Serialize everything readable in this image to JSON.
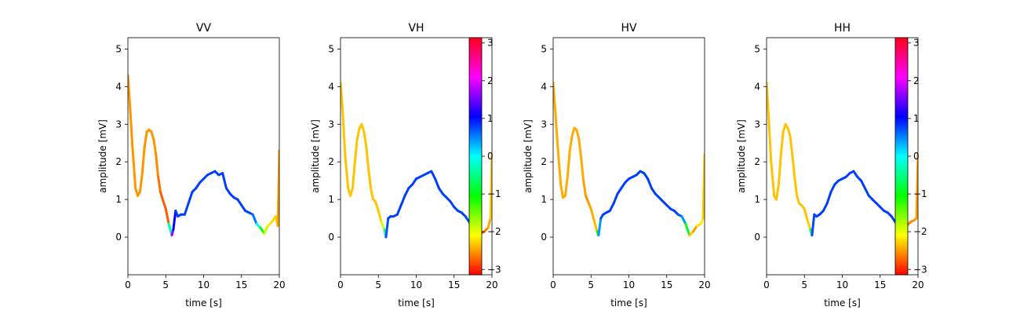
{
  "chart_data": {
    "type": "line",
    "colorbar": {
      "ticks": [
        3,
        2,
        1,
        0,
        -1,
        -2,
        -3
      ],
      "range": [
        -3.14,
        3.14
      ],
      "colormap": "hsv"
    },
    "panels": [
      {
        "title": "VV",
        "xlabel": "time [s]",
        "ylabel": "amplitude [mV]",
        "xlim": [
          0,
          20
        ],
        "ylim": [
          -1,
          5.3
        ],
        "xticks": [
          0,
          5,
          10,
          15,
          20
        ],
        "yticks": [
          0,
          1,
          2,
          3,
          4,
          5
        ],
        "has_colorbar": false,
        "series": {
          "x": [
            0,
            0.3,
            0.6,
            1.0,
            1.3,
            1.6,
            1.9,
            2.2,
            2.5,
            2.8,
            3.1,
            3.4,
            3.7,
            4.0,
            4.3,
            4.6,
            5.0,
            5.4,
            5.8,
            6.0,
            6.3,
            6.6,
            7.0,
            7.5,
            8.0,
            8.5,
            9.0,
            9.5,
            10.0,
            10.5,
            11.0,
            11.5,
            12.0,
            12.5,
            13.0,
            13.5,
            14.0,
            14.5,
            15.0,
            15.5,
            16.0,
            16.5,
            17.0,
            17.5,
            18.0,
            18.5,
            19.0,
            19.5,
            19.8,
            20.0
          ],
          "y": [
            4.3,
            3.4,
            2.4,
            1.3,
            1.1,
            1.2,
            1.7,
            2.4,
            2.8,
            2.85,
            2.8,
            2.6,
            2.2,
            1.6,
            1.2,
            1.0,
            0.75,
            0.35,
            0.05,
            0.2,
            0.7,
            0.55,
            0.6,
            0.6,
            0.9,
            1.2,
            1.3,
            1.45,
            1.55,
            1.65,
            1.7,
            1.75,
            1.65,
            1.7,
            1.3,
            1.15,
            1.05,
            1.0,
            0.85,
            0.7,
            0.65,
            0.6,
            0.35,
            0.25,
            0.1,
            0.3,
            0.4,
            0.55,
            0.3,
            2.3
          ],
          "phase": [
            -2.5,
            -2.5,
            -2.5,
            -2.5,
            -2.5,
            -2.5,
            -2.5,
            -2.5,
            -2.5,
            -2.5,
            -2.5,
            -2.5,
            -2.5,
            -2.6,
            -2.7,
            -2.8,
            -2.7,
            -2.8,
            2.4,
            1.5,
            1.0,
            1.0,
            1.0,
            1.0,
            1.0,
            1.0,
            1.0,
            1.0,
            1.0,
            1.0,
            1.0,
            1.0,
            1.0,
            1.0,
            1.0,
            1.0,
            1.0,
            1.0,
            1.0,
            1.0,
            1.0,
            0.9,
            0.6,
            -0.5,
            -1.5,
            -2.0,
            -2.3,
            -2.1,
            -2.4,
            -2.5
          ]
        }
      },
      {
        "title": "VH",
        "xlabel": "time [s]",
        "ylabel": "amplitude [mV]",
        "xlim": [
          0,
          20
        ],
        "ylim": [
          -1,
          5.3
        ],
        "xticks": [
          0,
          5,
          10,
          15,
          20
        ],
        "yticks": [
          0,
          1,
          2,
          3,
          4,
          5
        ],
        "has_colorbar": true,
        "series": {
          "x": [
            0,
            0.3,
            0.6,
            1.0,
            1.3,
            1.6,
            1.9,
            2.2,
            2.5,
            2.8,
            3.1,
            3.4,
            3.7,
            4.0,
            4.3,
            4.6,
            5.0,
            5.4,
            5.8,
            6.0,
            6.3,
            6.6,
            7.0,
            7.5,
            8.0,
            8.5,
            9.0,
            9.5,
            10.0,
            10.5,
            11.0,
            11.5,
            12.0,
            12.5,
            13.0,
            13.5,
            14.0,
            14.5,
            15.0,
            15.5,
            16.0,
            16.5,
            17.0,
            17.5,
            18.0,
            18.5,
            19.0,
            19.5,
            19.8,
            20.0
          ],
          "y": [
            4.1,
            3.3,
            2.2,
            1.3,
            1.1,
            1.3,
            2.0,
            2.6,
            2.9,
            3.0,
            2.8,
            2.4,
            1.8,
            1.3,
            1.0,
            0.95,
            0.7,
            0.4,
            0.2,
            0.0,
            0.5,
            0.55,
            0.55,
            0.6,
            0.85,
            1.1,
            1.3,
            1.4,
            1.55,
            1.6,
            1.65,
            1.7,
            1.75,
            1.55,
            1.3,
            1.15,
            1.05,
            0.95,
            0.8,
            0.7,
            0.65,
            0.55,
            0.4,
            0.3,
            0.1,
            0.1,
            0.15,
            0.25,
            0.5,
            2.2
          ],
          "phase": [
            -2.3,
            -2.3,
            -2.3,
            -2.3,
            -2.3,
            -2.3,
            -2.3,
            -2.3,
            -2.3,
            -2.3,
            -2.3,
            -2.3,
            -2.3,
            -2.3,
            -2.3,
            -2.3,
            -2.3,
            -2.2,
            -1.5,
            0.8,
            1.0,
            1.0,
            1.0,
            1.0,
            1.0,
            1.0,
            1.0,
            1.0,
            1.0,
            1.0,
            1.0,
            1.0,
            1.0,
            1.0,
            1.0,
            1.0,
            1.0,
            1.0,
            1.0,
            1.0,
            1.0,
            1.0,
            0.9,
            0.8,
            -3.0,
            -2.9,
            -2.7,
            -2.5,
            -2.3,
            -2.2
          ]
        }
      },
      {
        "title": "HV",
        "xlabel": "time [s]",
        "ylabel": "amplitude [mV]",
        "xlim": [
          0,
          20
        ],
        "ylim": [
          -1,
          5.3
        ],
        "xticks": [
          0,
          5,
          10,
          15,
          20
        ],
        "yticks": [
          0,
          1,
          2,
          3,
          4,
          5
        ],
        "has_colorbar": false,
        "series": {
          "x": [
            0,
            0.3,
            0.6,
            1.0,
            1.3,
            1.6,
            1.9,
            2.2,
            2.5,
            2.8,
            3.1,
            3.4,
            3.7,
            4.0,
            4.3,
            4.6,
            5.0,
            5.4,
            5.8,
            6.0,
            6.3,
            6.6,
            7.0,
            7.5,
            8.0,
            8.5,
            9.0,
            9.5,
            10.0,
            10.5,
            11.0,
            11.5,
            12.0,
            12.5,
            13.0,
            13.5,
            14.0,
            14.5,
            15.0,
            15.5,
            16.0,
            16.5,
            17.0,
            17.5,
            18.0,
            18.5,
            19.0,
            19.5,
            19.8,
            20.0
          ],
          "y": [
            4.1,
            3.3,
            2.4,
            1.4,
            1.05,
            1.1,
            1.6,
            2.3,
            2.7,
            2.9,
            2.85,
            2.6,
            2.1,
            1.5,
            1.1,
            0.95,
            0.75,
            0.45,
            0.15,
            0.05,
            0.5,
            0.6,
            0.65,
            0.7,
            0.9,
            1.15,
            1.3,
            1.45,
            1.55,
            1.6,
            1.65,
            1.75,
            1.7,
            1.55,
            1.3,
            1.15,
            1.05,
            0.95,
            0.85,
            0.75,
            0.7,
            0.6,
            0.55,
            0.35,
            0.05,
            0.15,
            0.3,
            0.35,
            0.5,
            2.2
          ],
          "phase": [
            -2.4,
            -2.4,
            -2.4,
            -2.4,
            -2.4,
            -2.4,
            -2.4,
            -2.4,
            -2.4,
            -2.4,
            -2.4,
            -2.4,
            -2.4,
            -2.4,
            -2.5,
            -2.5,
            -2.4,
            -2.4,
            -2.3,
            0.3,
            0.9,
            1.0,
            1.0,
            1.0,
            1.0,
            1.0,
            1.0,
            1.0,
            1.0,
            1.0,
            1.0,
            1.0,
            1.0,
            1.0,
            1.0,
            1.0,
            1.0,
            1.0,
            1.0,
            1.0,
            1.0,
            1.0,
            0.8,
            0.4,
            -2.0,
            -2.6,
            -2.3,
            -2.0,
            -2.2,
            -2.3
          ]
        }
      },
      {
        "title": "HH",
        "xlabel": "time [s]",
        "ylabel": "amplitude [mV]",
        "xlim": [
          0,
          20
        ],
        "ylim": [
          -1,
          5.3
        ],
        "xticks": [
          0,
          5,
          10,
          15,
          20
        ],
        "yticks": [
          0,
          1,
          2,
          3,
          4,
          5
        ],
        "has_colorbar": true,
        "series": {
          "x": [
            0,
            0.3,
            0.6,
            1.0,
            1.3,
            1.6,
            1.9,
            2.2,
            2.5,
            2.8,
            3.1,
            3.4,
            3.7,
            4.0,
            4.3,
            4.6,
            5.0,
            5.4,
            5.8,
            6.0,
            6.3,
            6.6,
            7.0,
            7.5,
            8.0,
            8.5,
            9.0,
            9.5,
            10.0,
            10.5,
            11.0,
            11.5,
            12.0,
            12.5,
            13.0,
            13.5,
            14.0,
            14.5,
            15.0,
            15.5,
            16.0,
            16.5,
            17.0,
            17.5,
            18.0,
            18.5,
            19.0,
            19.5,
            19.8,
            20.0
          ],
          "y": [
            4.1,
            3.1,
            2.0,
            1.1,
            1.0,
            1.4,
            2.2,
            2.8,
            3.0,
            2.9,
            2.7,
            2.2,
            1.6,
            1.1,
            0.9,
            0.85,
            0.75,
            0.45,
            0.2,
            0.05,
            0.6,
            0.55,
            0.6,
            0.7,
            0.9,
            1.2,
            1.4,
            1.5,
            1.55,
            1.6,
            1.7,
            1.75,
            1.6,
            1.5,
            1.3,
            1.1,
            1.0,
            0.9,
            0.8,
            0.7,
            0.65,
            0.55,
            0.4,
            0.3,
            0.05,
            0.3,
            0.4,
            0.45,
            0.5,
            2.2
          ],
          "phase": [
            -2.3,
            -2.3,
            -2.3,
            -2.3,
            -2.3,
            -2.3,
            -2.3,
            -2.3,
            -2.3,
            -2.3,
            -2.3,
            -2.3,
            -2.3,
            -2.3,
            -2.3,
            -2.3,
            -2.3,
            -2.3,
            -2.2,
            0.9,
            1.0,
            1.0,
            1.0,
            1.0,
            1.0,
            1.0,
            1.0,
            1.0,
            1.0,
            1.0,
            1.0,
            1.0,
            1.0,
            1.0,
            1.0,
            1.0,
            1.0,
            1.0,
            1.0,
            1.0,
            1.0,
            1.0,
            1.0,
            0.9,
            -3.0,
            -2.7,
            -2.6,
            -2.5,
            -2.5,
            -2.4
          ]
        }
      }
    ]
  }
}
